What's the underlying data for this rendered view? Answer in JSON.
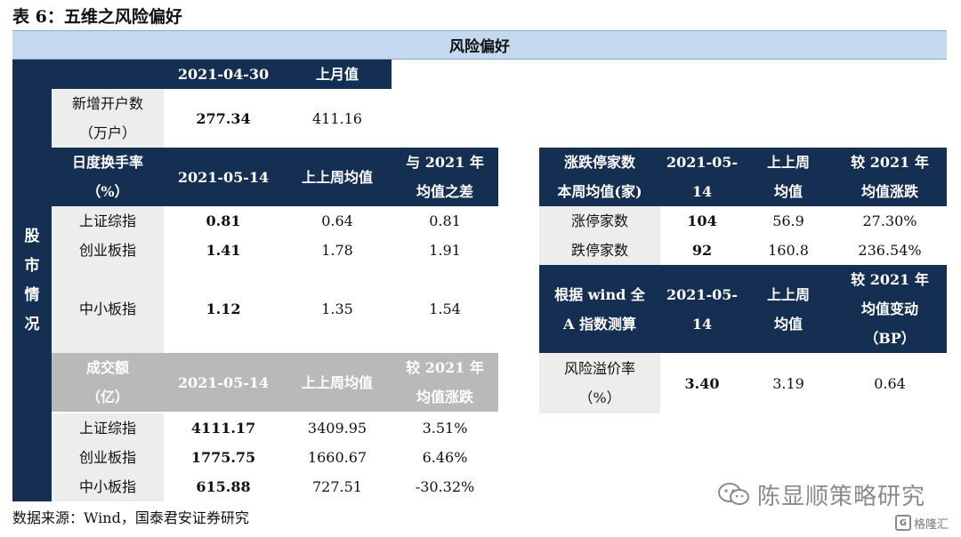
{
  "title": "表 6：五维之风险偏好",
  "banner": "风险偏好",
  "section_label": "股\n市\n情\n况",
  "account": {
    "headers": [
      "2021-04-30",
      "上月值"
    ],
    "row_label": "新增开户数\n（万户）",
    "row": [
      "277.34",
      "411.16"
    ]
  },
  "turnover_rate": {
    "header_label": "日度换手率\n（%）",
    "headers": [
      "2021-05-14",
      "上上周均值",
      "与 2021 年\n均值之差"
    ],
    "rows": [
      {
        "label": "上证综指",
        "values": [
          "0.81",
          "0.64",
          "0.81"
        ]
      },
      {
        "label": "创业板指",
        "values": [
          "1.41",
          "1.78",
          "1.91"
        ]
      },
      {
        "label": "中小板指",
        "values": [
          "1.12",
          "1.35",
          "1.54"
        ]
      }
    ]
  },
  "volume": {
    "header_label": "成交额\n（亿）",
    "headers": [
      "2021-05-14",
      "上上周均值",
      "较 2021 年\n均值涨跌"
    ],
    "rows": [
      {
        "label": "上证综指",
        "values": [
          "4111.17",
          "3409.95",
          "3.51%"
        ]
      },
      {
        "label": "创业板指",
        "values": [
          "1775.75",
          "1660.67",
          "6.46%"
        ]
      },
      {
        "label": "中小板指",
        "values": [
          "615.88",
          "727.51",
          "-30.32%"
        ]
      }
    ]
  },
  "limit": {
    "header_label": "涨跌停家数\n本周均值(家)",
    "headers": [
      "2021-05-\n14",
      "上上周\n均值",
      "较 2021 年\n均值涨跌"
    ],
    "rows": [
      {
        "label": "涨停家数",
        "values": [
          "104",
          "56.9",
          "27.30%"
        ]
      },
      {
        "label": "跌停家数",
        "values": [
          "92",
          "160.8",
          "236.54%"
        ]
      }
    ]
  },
  "risk": {
    "header_label": "根据 wind 全\nA 指数测算",
    "headers": [
      "2021-05-\n14",
      "上上周\n均值",
      "较 2021 年\n均值变动\n（BP）"
    ],
    "rows": [
      {
        "label": "风险溢价率\n（%）",
        "values": [
          "3.40",
          "3.19",
          "0.64"
        ]
      }
    ]
  },
  "footer": "数据来源：Wind，国泰君安证券研究",
  "watermark": "陈显顺策略研究",
  "logo": "格隆汇",
  "colors": {
    "navy": "#152f52",
    "banner": "#c4d9ef",
    "grey": "#ededed",
    "dark_grey": "#b9b9b9"
  }
}
